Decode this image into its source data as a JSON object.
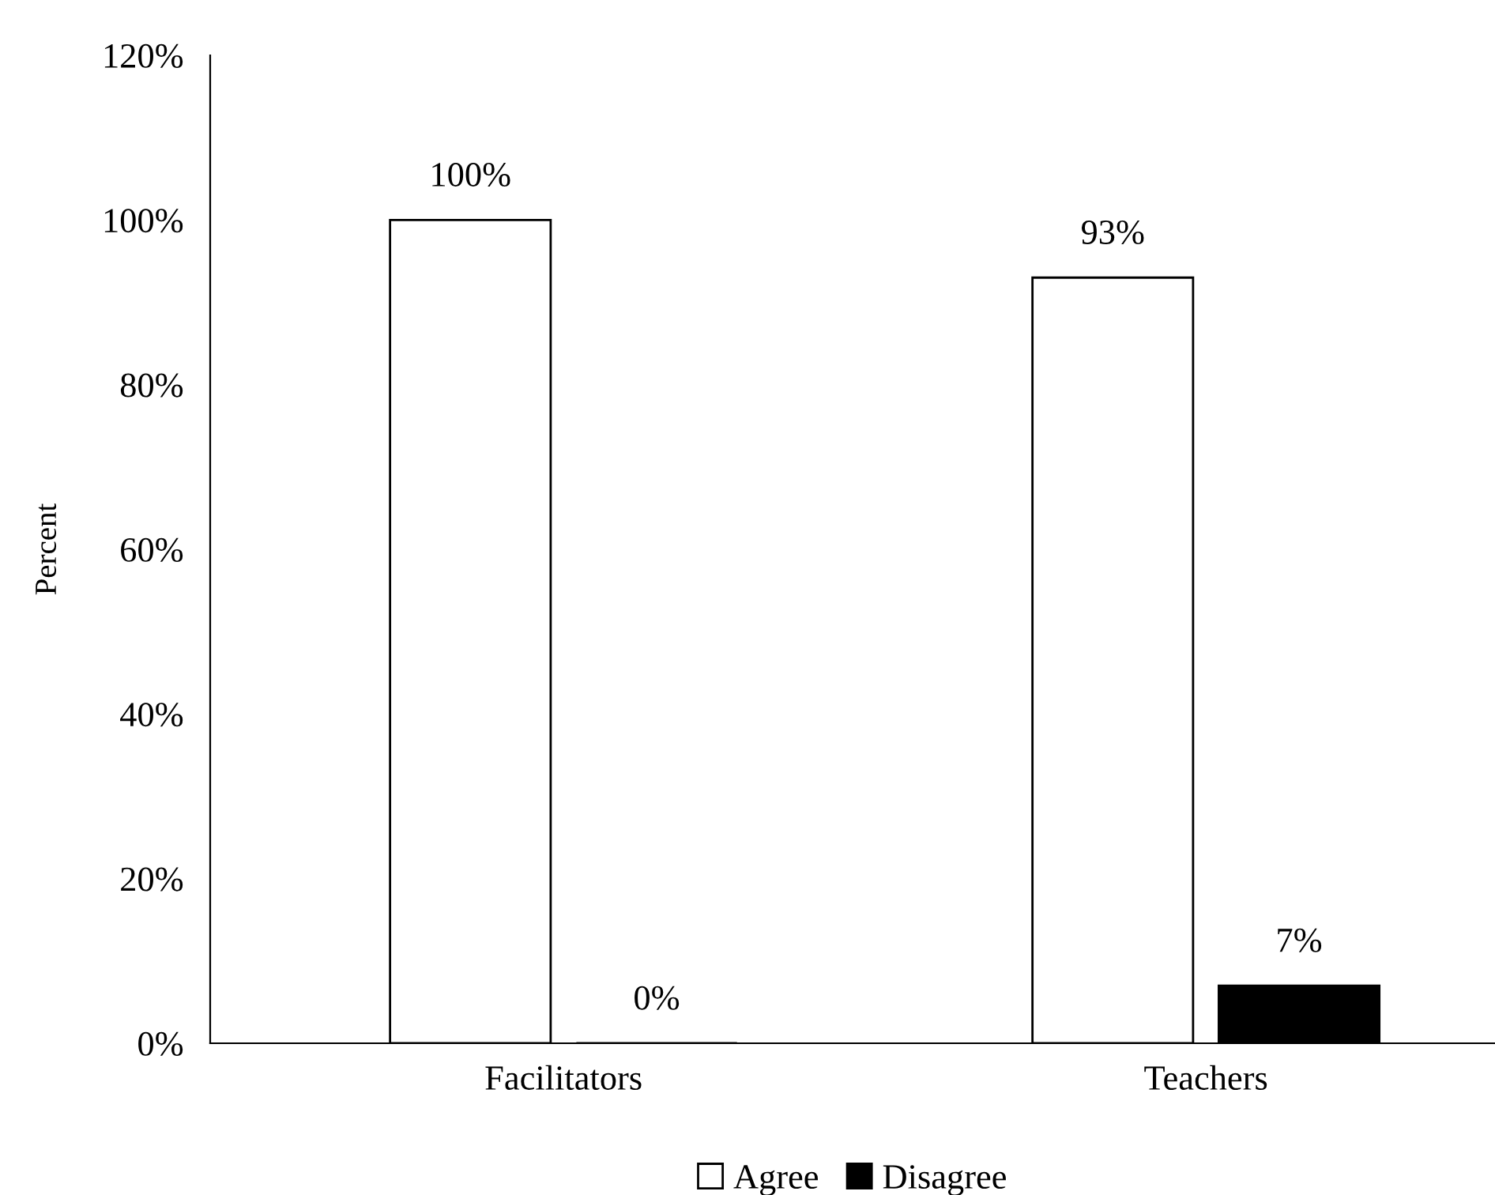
{
  "chart_data": {
    "type": "bar",
    "ylabel": "Percent",
    "categories": [
      "Facilitators",
      "Teachers"
    ],
    "series": [
      {
        "name": "Agree",
        "color": "#ffffff",
        "values": [
          100,
          93
        ],
        "value_labels": [
          "100%",
          "93%"
        ]
      },
      {
        "name": "Disagree",
        "color": "#000000",
        "values": [
          0,
          7
        ],
        "value_labels": [
          "0%",
          "7%"
        ]
      }
    ],
    "ylim": [
      0,
      120
    ],
    "yticks": [
      {
        "value": 0,
        "label": "0%"
      },
      {
        "value": 20,
        "label": "20%"
      },
      {
        "value": 40,
        "label": "40%"
      },
      {
        "value": 60,
        "label": "60%"
      },
      {
        "value": 80,
        "label": "80%"
      },
      {
        "value": 100,
        "label": "100%"
      },
      {
        "value": 120,
        "label": "120%"
      }
    ],
    "grid": false,
    "legend": "bottom"
  }
}
